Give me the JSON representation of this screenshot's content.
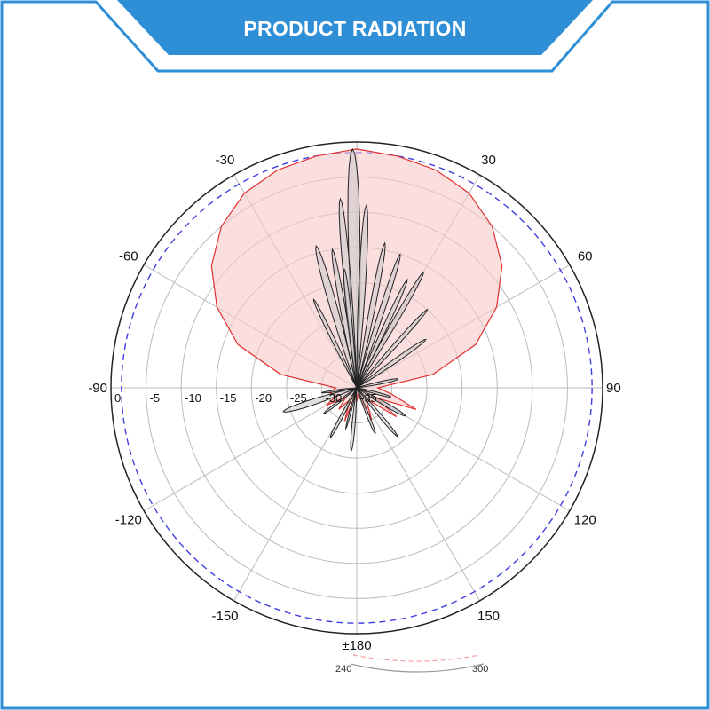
{
  "banner": {
    "title": "PRODUCT RADIATION"
  },
  "colors": {
    "banner": "#2f8fd6",
    "frame": "#2f8fd6",
    "hpol_fill": "#f9c9c9",
    "hpol_line": "#e03030",
    "vpol_fill": "#c8c8c8",
    "vpol_line": "#222222",
    "ref_circle": "#4040e0",
    "grid": "#bbbbbb"
  },
  "chart_data": {
    "type": "polar",
    "angle_labels": [
      {
        "angle": -30,
        "text": "-30"
      },
      {
        "angle": 30,
        "text": "30"
      },
      {
        "angle": -60,
        "text": "-60"
      },
      {
        "angle": 60,
        "text": "60"
      },
      {
        "angle": -90,
        "text": "-90"
      },
      {
        "angle": 90,
        "text": "90"
      },
      {
        "angle": -120,
        "text": "-120"
      },
      {
        "angle": 120,
        "text": "120"
      },
      {
        "angle": -150,
        "text": "-150"
      },
      {
        "angle": 150,
        "text": "150"
      },
      {
        "angle": 180,
        "text": "±180"
      }
    ],
    "radial_ticks": [
      "0",
      "-5",
      "-10",
      "-15",
      "-20",
      "-25",
      "-30",
      "-35"
    ],
    "radial_range": [
      -35,
      0
    ],
    "reference_level": -1.5,
    "series": [
      {
        "style": "red-filled",
        "points": [
          [
            -90,
            -32
          ],
          [
            -80,
            -24
          ],
          [
            -70,
            -17
          ],
          [
            -60,
            -12
          ],
          [
            -50,
            -8
          ],
          [
            -40,
            -5
          ],
          [
            -30,
            -3
          ],
          [
            -20,
            -2
          ],
          [
            -10,
            -1.5
          ],
          [
            0,
            -1
          ],
          [
            10,
            -1.5
          ],
          [
            20,
            -2
          ],
          [
            30,
            -3
          ],
          [
            40,
            -5
          ],
          [
            50,
            -8
          ],
          [
            60,
            -12
          ],
          [
            70,
            -17
          ],
          [
            80,
            -24
          ],
          [
            90,
            -32
          ],
          [
            100,
            -30
          ],
          [
            110,
            -26
          ],
          [
            118,
            -32
          ],
          [
            126,
            -28
          ],
          [
            140,
            -33
          ],
          [
            155,
            -30
          ],
          [
            170,
            -34
          ],
          [
            180,
            -33
          ],
          [
            -170,
            -34
          ],
          [
            -160,
            -30
          ],
          [
            -150,
            -33
          ],
          [
            -140,
            -31
          ],
          [
            -130,
            -33
          ],
          [
            -120,
            -30
          ],
          [
            -110,
            -32
          ],
          [
            -100,
            -31
          ]
        ]
      },
      {
        "style": "gray-filled",
        "lobes": [
          {
            "angle": -1,
            "level": -1,
            "width": 4
          },
          {
            "angle": -5,
            "level": -8,
            "width": 3
          },
          {
            "angle": 3,
            "level": -9,
            "width": 3
          },
          {
            "angle": 11,
            "level": -14,
            "width": 3
          },
          {
            "angle": -10,
            "level": -15,
            "width": 3
          },
          {
            "angle": -6,
            "level": -18,
            "width": 3
          },
          {
            "angle": 18,
            "level": -15,
            "width": 3
          },
          {
            "angle": -16,
            "level": -14,
            "width": 4
          },
          {
            "angle": 25,
            "level": -18,
            "width": 3
          },
          {
            "angle": 30,
            "level": -16,
            "width": 3
          },
          {
            "angle": 42,
            "level": -20,
            "width": 3
          },
          {
            "angle": -26,
            "level": -21,
            "width": 3
          },
          {
            "angle": 55,
            "level": -23,
            "width": 4
          },
          {
            "angle": 78,
            "level": -29,
            "width": 5
          },
          {
            "angle": 105,
            "level": -30,
            "width": 5
          },
          {
            "angle": 120,
            "level": -27,
            "width": 5
          },
          {
            "angle": 140,
            "level": -26,
            "width": 4
          },
          {
            "angle": 158,
            "level": -28,
            "width": 4
          },
          {
            "angle": -175,
            "level": -26,
            "width": 4
          },
          {
            "angle": -165,
            "level": -29,
            "width": 3
          },
          {
            "angle": -152,
            "level": -27,
            "width": 4
          },
          {
            "angle": -128,
            "level": -29,
            "width": 4
          },
          {
            "angle": -108,
            "level": -24,
            "width": 6
          },
          {
            "angle": -98,
            "level": -30,
            "width": 4
          }
        ]
      }
    ]
  },
  "legend_mini": {
    "left": "240",
    "right": "300"
  }
}
